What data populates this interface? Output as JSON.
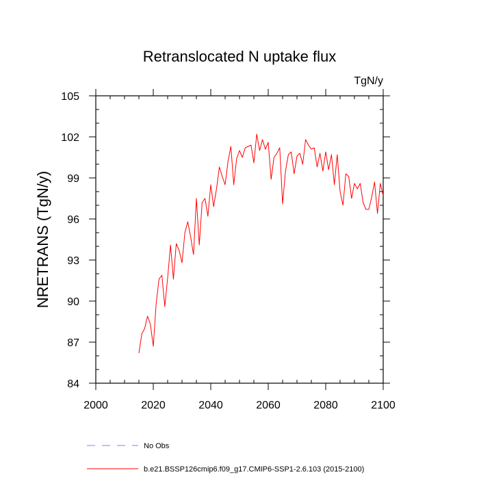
{
  "chart_data": {
    "type": "line",
    "title": "Retranslocated N uptake flux",
    "units": "TgN/y",
    "ylabel": "NRETRANS  (TgN/y)",
    "xlabel": "",
    "xlim": [
      2000,
      2100
    ],
    "ylim": [
      84,
      105
    ],
    "xticks": [
      2000,
      2020,
      2040,
      2060,
      2080,
      2100
    ],
    "xtick_labels": [
      "2000",
      "2020",
      "2040",
      "2060",
      "2080",
      "2100"
    ],
    "yticks": [
      84,
      87,
      90,
      93,
      96,
      99,
      102,
      105
    ],
    "ytick_labels": [
      "84",
      "87",
      "90",
      "93",
      "96",
      "99",
      "102",
      "105"
    ],
    "series": [
      {
        "name": "b.e21.BSSP126cmip6.f09_g17.CMIP6-SSP1-2.6.103 (2015-2100)",
        "color": "#ff0000",
        "style": "solid",
        "x": [
          2015,
          2016,
          2017,
          2018,
          2019,
          2020,
          2021,
          2022,
          2023,
          2024,
          2025,
          2026,
          2027,
          2028,
          2029,
          2030,
          2031,
          2032,
          2033,
          2034,
          2035,
          2036,
          2037,
          2038,
          2039,
          2040,
          2041,
          2042,
          2043,
          2044,
          2045,
          2046,
          2047,
          2048,
          2049,
          2050,
          2051,
          2052,
          2053,
          2054,
          2055,
          2056,
          2057,
          2058,
          2059,
          2060,
          2061,
          2062,
          2063,
          2064,
          2065,
          2066,
          2067,
          2068,
          2069,
          2070,
          2071,
          2072,
          2073,
          2074,
          2075,
          2076,
          2077,
          2078,
          2079,
          2080,
          2081,
          2082,
          2083,
          2084,
          2085,
          2086,
          2087,
          2088,
          2089,
          2090,
          2091,
          2092,
          2093,
          2094,
          2095,
          2096,
          2097,
          2098,
          2099,
          2100
        ],
        "values": [
          86.2,
          87.6,
          88.0,
          88.9,
          88.3,
          86.7,
          89.8,
          91.6,
          91.9,
          89.6,
          91.7,
          94.1,
          91.6,
          94.2,
          93.7,
          92.8,
          95.0,
          95.8,
          94.7,
          93.4,
          97.5,
          94.1,
          97.2,
          97.5,
          96.2,
          98.5,
          96.9,
          98.2,
          99.8,
          99.1,
          98.5,
          100.2,
          101.3,
          98.5,
          100.4,
          101.0,
          100.5,
          101.2,
          101.3,
          101.4,
          100.1,
          102.2,
          101.0,
          101.8,
          101.1,
          101.6,
          98.9,
          100.5,
          100.8,
          101.2,
          97.1,
          99.5,
          100.7,
          100.9,
          99.3,
          100.6,
          100.8,
          100.0,
          101.8,
          101.4,
          101.1,
          101.2,
          99.8,
          100.8,
          99.5,
          100.9,
          99.6,
          100.7,
          98.5,
          100.7,
          98.0,
          97.0,
          99.3,
          99.1,
          97.5,
          98.6,
          98.2,
          98.6,
          97.2,
          96.7,
          96.7,
          97.6,
          98.7,
          96.4,
          98.6,
          97.7
        ]
      },
      {
        "name": "No Obs",
        "color": "#7f7fff",
        "style": "dashed",
        "x": [],
        "values": []
      }
    ],
    "legend_position": "bottom-left"
  }
}
